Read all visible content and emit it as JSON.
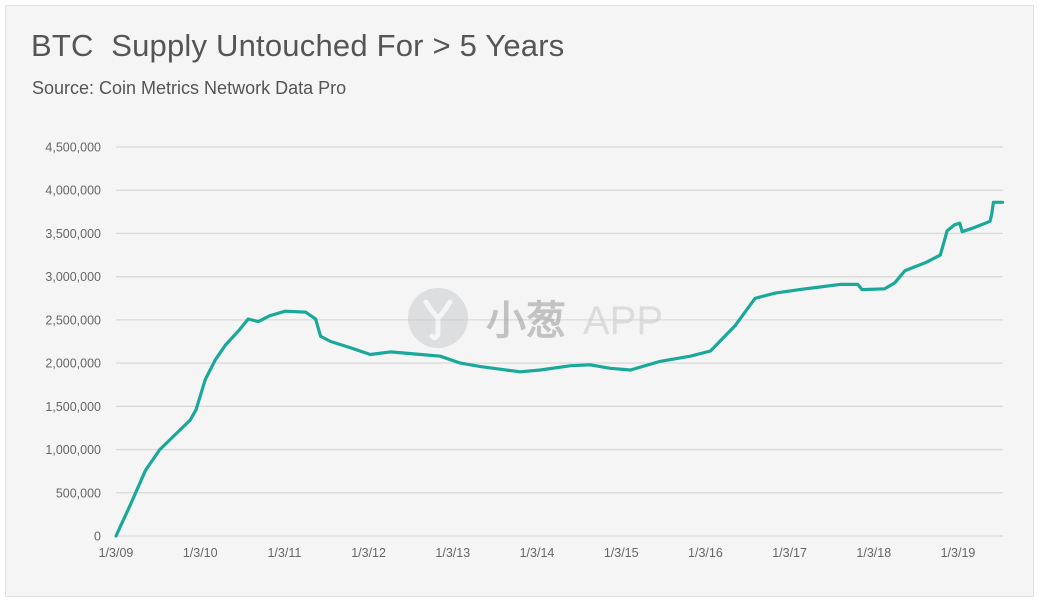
{
  "header": {
    "title": "BTC  Supply Untouched For > 5 Years",
    "subtitle": "Source: Coin Metrics Network Data Pro"
  },
  "watermark": {
    "brand_cn": "小葱",
    "brand_en": "APP"
  },
  "colors": {
    "series": "#1aa89a",
    "background": "#f5f5f5",
    "text": "#555555",
    "grid": "#d9d9d9"
  },
  "chart_data": {
    "type": "line",
    "title": "BTC  Supply Untouched For > 5 Years",
    "subtitle": "Source: Coin Metrics Network Data Pro",
    "xlabel": "",
    "ylabel": "",
    "ylim": [
      0,
      4500000
    ],
    "yticks": [
      0,
      500000,
      1000000,
      1500000,
      2000000,
      2500000,
      3000000,
      3500000,
      4000000,
      4500000
    ],
    "ytick_labels": [
      "0",
      "500,000",
      "1,000,000",
      "1,500,000",
      "2,000,000",
      "2,500,000",
      "3,000,000",
      "3,500,000",
      "4,000,000",
      "4,500,000"
    ],
    "xtick_labels": [
      "1/3/09",
      "1/3/10",
      "1/3/11",
      "1/3/12",
      "1/3/13",
      "1/3/14",
      "1/3/15",
      "1/3/16",
      "1/3/17",
      "1/3/18",
      "1/3/19"
    ],
    "grid": true,
    "legend": "none",
    "series": [
      {
        "name": "BTC Supply Untouched For > 5 Years",
        "x": [
          2009.0,
          2009.17,
          2009.35,
          2009.52,
          2009.7,
          2009.88,
          2009.95,
          2010.06,
          2010.18,
          2010.3,
          2010.47,
          2010.57,
          2010.69,
          2010.83,
          2011.01,
          2011.25,
          2011.37,
          2011.43,
          2011.55,
          2011.78,
          2012.02,
          2012.26,
          2012.62,
          2012.85,
          2013.09,
          2013.33,
          2013.56,
          2013.8,
          2014.04,
          2014.4,
          2014.63,
          2014.87,
          2015.11,
          2015.46,
          2015.82,
          2016.06,
          2016.17,
          2016.35,
          2016.59,
          2016.83,
          2017.12,
          2017.36,
          2017.6,
          2017.81,
          2017.86,
          2018.13,
          2018.25,
          2018.37,
          2018.61,
          2018.79,
          2018.87,
          2018.96,
          2019.02,
          2019.05,
          2019.2,
          2019.38,
          2019.4,
          2019.42,
          2019.53
        ],
        "values": [
          0,
          360000,
          760000,
          1000000,
          1170000,
          1340000,
          1460000,
          1810000,
          2040000,
          2210000,
          2390000,
          2510000,
          2480000,
          2550000,
          2600000,
          2590000,
          2510000,
          2310000,
          2250000,
          2180000,
          2100000,
          2130000,
          2100000,
          2080000,
          2000000,
          1960000,
          1930000,
          1900000,
          1920000,
          1970000,
          1980000,
          1940000,
          1920000,
          2020000,
          2080000,
          2140000,
          2250000,
          2430000,
          2750000,
          2810000,
          2850000,
          2880000,
          2910000,
          2910000,
          2850000,
          2860000,
          2930000,
          3070000,
          3160000,
          3250000,
          3530000,
          3600000,
          3620000,
          3520000,
          3570000,
          3640000,
          3720000,
          3860000,
          3860000
        ]
      }
    ]
  }
}
